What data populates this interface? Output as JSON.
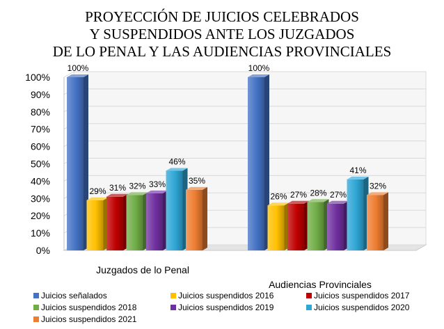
{
  "chart_data": {
    "type": "bar",
    "title_lines": [
      "PROYECCIÓN DE JUICIOS CELEBRADOS",
      "Y SUSPENDIDOS ANTE LOS JUZGADOS",
      "DE LO PENAL Y LAS AUDIENCIAS PROVINCIALES"
    ],
    "categories": [
      "Juzgados de lo Penal",
      "Audiencias Provinciales"
    ],
    "ylim": [
      0,
      100
    ],
    "y_ticks": [
      "0%",
      "10%",
      "20%",
      "30%",
      "40%",
      "50%",
      "60%",
      "70%",
      "80%",
      "90%",
      "100%"
    ],
    "value_suffix": "%",
    "grid": true,
    "legend_position": "bottom",
    "series": [
      {
        "name": "Juicios señalados",
        "color": "#4472C4",
        "values": [
          100,
          100
        ]
      },
      {
        "name": "Juicios suspendidos 2016",
        "color": "#FFC000",
        "values": [
          29,
          26
        ]
      },
      {
        "name": "Juicios suspendidos 2017",
        "color": "#C00000",
        "values": [
          31,
          27
        ]
      },
      {
        "name": "Juicios suspendidos 2018",
        "color": "#70AD47",
        "values": [
          32,
          28
        ]
      },
      {
        "name": "Juicios suspendidos 2019",
        "color": "#7030A0",
        "values": [
          33,
          27
        ]
      },
      {
        "name": "Juicios suspendidos 2020",
        "color": "#2EA6D6",
        "values": [
          46,
          41
        ]
      },
      {
        "name": "Juicios suspendidos 2021",
        "color": "#ED7D31",
        "values": [
          35,
          32
        ]
      }
    ]
  }
}
